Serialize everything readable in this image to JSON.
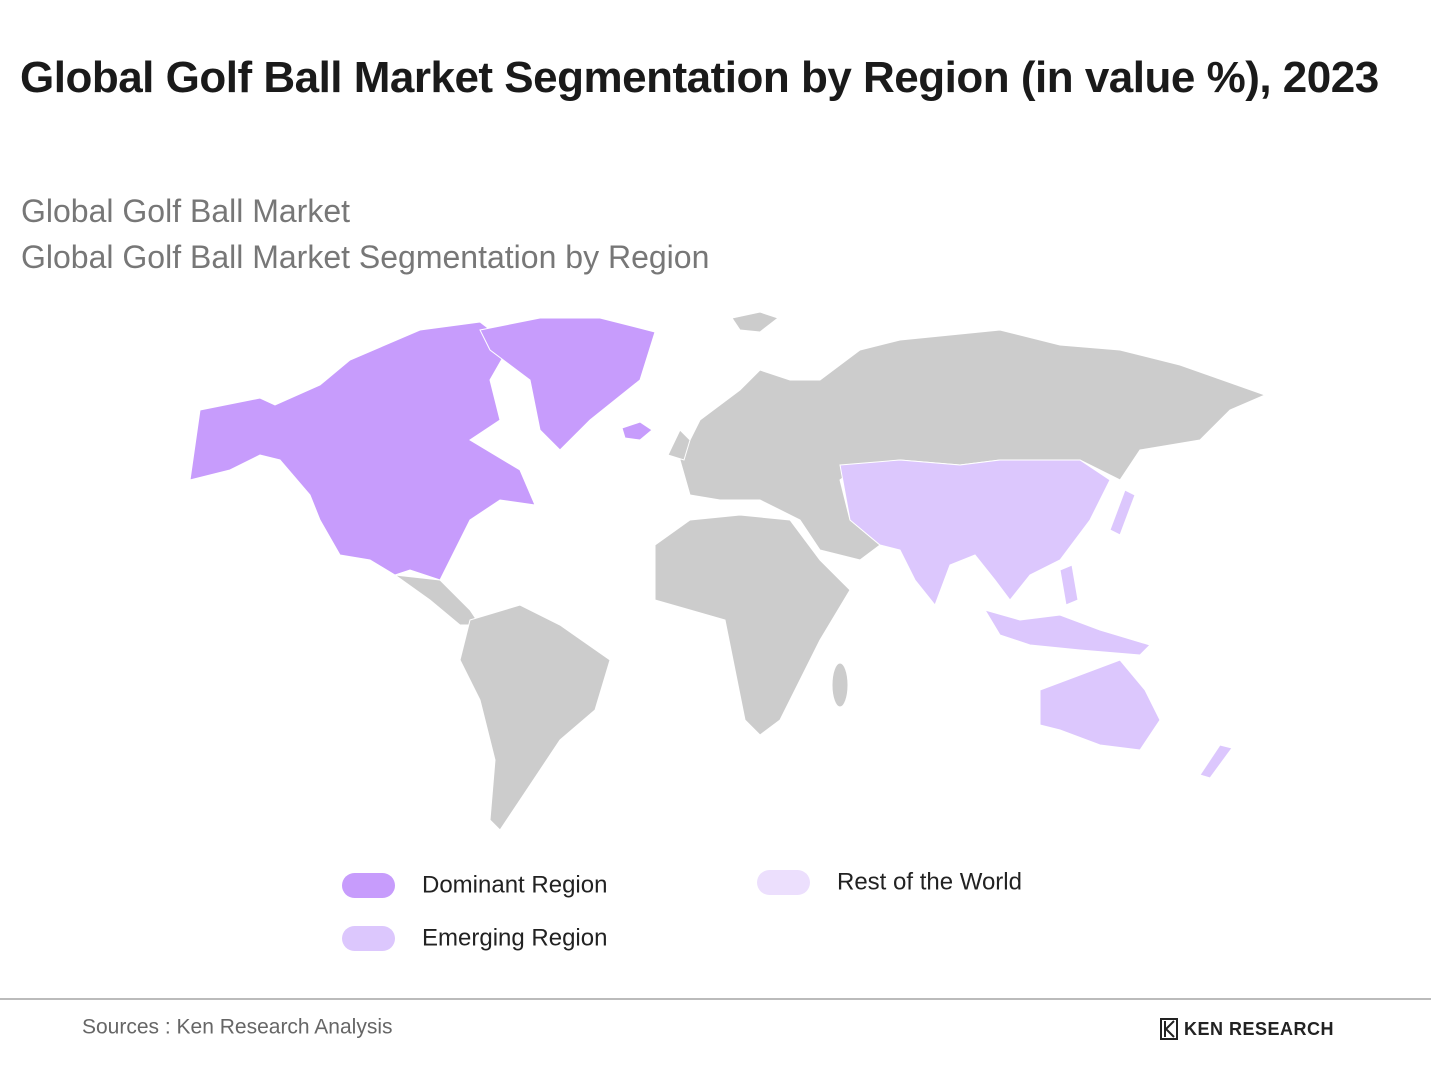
{
  "header": {
    "title": "Global Golf Ball Market Segmentation by Region (in value %), 2023",
    "subtitle_lines": [
      "Global Golf Ball Market",
      "Global Golf Ball Market Segmentation by Region"
    ]
  },
  "legend": [
    {
      "label": "Dominant Region",
      "color": "#c79cfc"
    },
    {
      "label": "Emerging Region",
      "color": "#dcc7fd"
    },
    {
      "label": "Rest of the World",
      "color": "#ecdffd"
    }
  ],
  "footer": {
    "source": "Sources : Ken Research Analysis",
    "logo": "KEN RESEARCH"
  }
}
